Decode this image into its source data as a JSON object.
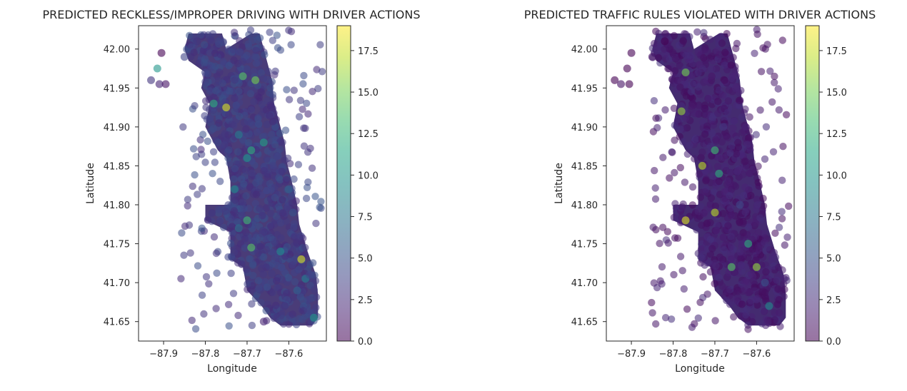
{
  "charts": [
    {
      "type": "scatter",
      "title": "PREDICTED RECKLESS/IMPROPER DRIVING WITH DRIVER ACTIONS",
      "xlabel": "Longitude",
      "ylabel": "Latitude",
      "xlim": [
        -87.96,
        -87.51
      ],
      "ylim": [
        41.625,
        42.03
      ],
      "xticks": [
        -87.9,
        -87.8,
        -87.7,
        -87.6
      ],
      "xtick_labels": [
        "−87.9",
        "−87.8",
        "−87.7",
        "−87.6"
      ],
      "yticks": [
        41.65,
        41.7,
        41.75,
        41.8,
        41.85,
        41.9,
        41.95,
        42.0
      ],
      "ytick_labels": [
        "41.65",
        "41.70",
        "41.75",
        "41.80",
        "41.85",
        "41.90",
        "41.95",
        "42.00"
      ],
      "colorbar": {
        "colormap": "viridis",
        "alpha": 0.5,
        "range": [
          0,
          19
        ],
        "ticks": [
          0,
          2.5,
          5,
          7.5,
          10,
          12.5,
          15,
          17.5
        ],
        "tick_labels": [
          "0.0",
          "2.5",
          "5.0",
          "7.5",
          "10.0",
          "12.5",
          "15.0",
          "17.5"
        ]
      },
      "points": [
        [
          -87.93,
          41.96,
          3
        ],
        [
          -87.915,
          41.975,
          10
        ],
        [
          -87.91,
          41.955,
          2
        ],
        [
          -87.905,
          41.995,
          0
        ],
        [
          -87.895,
          41.955,
          1
        ],
        [
          -87.85,
          41.99,
          4
        ],
        [
          -87.82,
          42.01,
          3
        ],
        [
          -87.8,
          41.97,
          4
        ],
        [
          -87.78,
          41.93,
          12
        ],
        [
          -87.75,
          41.925,
          18
        ],
        [
          -87.71,
          41.965,
          14
        ],
        [
          -87.68,
          41.96,
          15
        ],
        [
          -87.72,
          41.89,
          8
        ],
        [
          -87.7,
          41.86,
          10
        ],
        [
          -87.69,
          41.87,
          12
        ],
        [
          -87.66,
          41.88,
          11
        ],
        [
          -87.73,
          41.82,
          9
        ],
        [
          -87.7,
          41.78,
          13
        ],
        [
          -87.69,
          41.745,
          14
        ],
        [
          -87.62,
          41.74,
          9
        ],
        [
          -87.59,
          41.79,
          5
        ],
        [
          -87.57,
          41.73,
          18
        ],
        [
          -87.56,
          41.705,
          8
        ],
        [
          -87.54,
          41.655,
          10
        ],
        [
          -87.61,
          41.67,
          3
        ],
        [
          -87.66,
          41.65,
          2
        ],
        [
          -87.55,
          41.71,
          4
        ],
        [
          -87.58,
          41.69,
          6
        ],
        [
          -87.72,
          41.77,
          7
        ],
        [
          -87.6,
          41.82,
          6
        ]
      ]
    },
    {
      "type": "scatter",
      "title": "PREDICTED TRAFFIC RULES VIOLATED WITH DRIVER ACTIONS",
      "xlabel": "Longitude",
      "ylabel": "Latitude",
      "xlim": [
        -87.96,
        -87.51
      ],
      "ylim": [
        41.625,
        42.03
      ],
      "xticks": [
        -87.9,
        -87.8,
        -87.7,
        -87.6
      ],
      "xtick_labels": [
        "−87.9",
        "−87.8",
        "−87.7",
        "−87.6"
      ],
      "yticks": [
        41.65,
        41.7,
        41.75,
        41.8,
        41.85,
        41.9,
        41.95,
        42.0
      ],
      "ytick_labels": [
        "41.65",
        "41.70",
        "41.75",
        "41.80",
        "41.85",
        "41.90",
        "41.95",
        "42.00"
      ],
      "colorbar": {
        "colormap": "viridis",
        "alpha": 0.5,
        "range": [
          0,
          19
        ],
        "ticks": [
          0,
          2.5,
          5,
          7.5,
          10,
          12.5,
          15,
          17.5
        ],
        "tick_labels": [
          "0.0",
          "2.5",
          "5.0",
          "7.5",
          "10.0",
          "12.5",
          "15.0",
          "17.5"
        ]
      },
      "points": [
        [
          -87.94,
          41.96,
          0
        ],
        [
          -87.925,
          41.955,
          1
        ],
        [
          -87.91,
          41.975,
          0
        ],
        [
          -87.9,
          41.995,
          0
        ],
        [
          -87.905,
          41.955,
          0
        ],
        [
          -87.85,
          41.99,
          1
        ],
        [
          -87.82,
          42.01,
          0
        ],
        [
          -87.77,
          41.97,
          15
        ],
        [
          -87.78,
          41.92,
          16
        ],
        [
          -87.73,
          41.85,
          17
        ],
        [
          -87.7,
          41.87,
          13
        ],
        [
          -87.69,
          41.84,
          12
        ],
        [
          -87.7,
          41.79,
          17
        ],
        [
          -87.77,
          41.78,
          18
        ],
        [
          -87.62,
          41.75,
          12
        ],
        [
          -87.66,
          41.72,
          14
        ],
        [
          -87.6,
          41.72,
          16
        ],
        [
          -87.57,
          41.67,
          9
        ],
        [
          -87.64,
          41.8,
          4
        ],
        [
          -87.68,
          41.9,
          3
        ],
        [
          -87.65,
          41.95,
          2
        ],
        [
          -87.58,
          41.7,
          5
        ]
      ]
    }
  ]
}
